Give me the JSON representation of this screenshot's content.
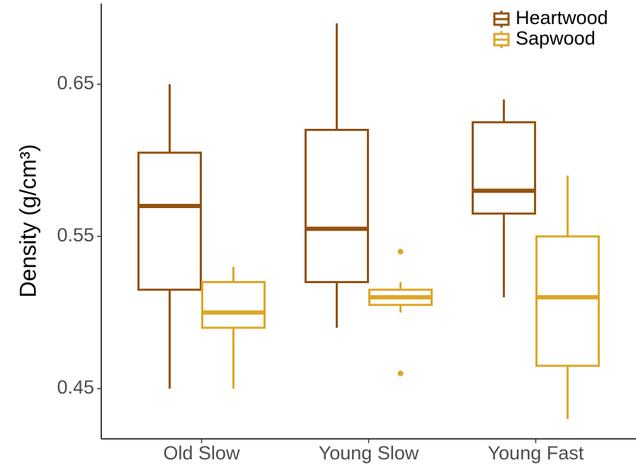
{
  "chart_data": {
    "type": "box",
    "y_label": "Density (g/cm³)",
    "categories": [
      "Old Slow",
      "Young Slow",
      "Young Fast"
    ],
    "ylim": [
      0.417,
      0.703
    ],
    "yticks": [
      0.45,
      0.55,
      0.65
    ],
    "legend": "top-right",
    "grid": false,
    "series": [
      {
        "name": "Heartwood",
        "color": "#93520f",
        "min": [
          0.45,
          0.49,
          0.51
        ],
        "q1": [
          0.515,
          0.52,
          0.565
        ],
        "median": [
          0.57,
          0.555,
          0.58
        ],
        "q3": [
          0.605,
          0.62,
          0.625
        ],
        "max": [
          0.65,
          0.69,
          0.64
        ],
        "outliers": [
          [],
          [],
          []
        ]
      },
      {
        "name": "Sapwood",
        "color": "#dea626",
        "min": [
          0.45,
          0.5,
          0.43
        ],
        "q1": [
          0.49,
          0.505,
          0.465
        ],
        "median": [
          0.5,
          0.51,
          0.51
        ],
        "q3": [
          0.52,
          0.515,
          0.55
        ],
        "max": [
          0.53,
          0.52,
          0.59
        ],
        "outliers": [
          [],
          [
            0.54,
            0.46
          ],
          []
        ]
      }
    ]
  }
}
